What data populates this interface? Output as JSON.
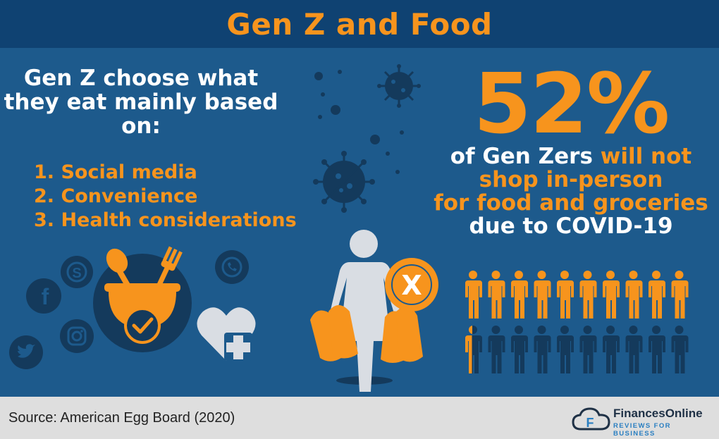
{
  "header": {
    "title": "Gen Z and Food"
  },
  "intro": {
    "text": "Gen Z choose what they eat mainly based on:"
  },
  "reasons": [
    "1. Social media",
    "2. Convenience",
    "3. Health considerations"
  ],
  "stat": {
    "value": "52%",
    "line1_white": "of Gen Zers ",
    "line1_orange": "will not",
    "line2": "shop in-person",
    "line3": "for food and groceries",
    "line4": "due to COVID-19",
    "x_mark": "X"
  },
  "people_chart": {
    "total": 20,
    "highlighted_fraction": 0.52
  },
  "social_icons": [
    "skype-icon",
    "facebook-icon",
    "instagram-icon",
    "twitter-icon",
    "whatsapp-icon"
  ],
  "colors": {
    "orange": "#f7941d",
    "navy": "#0f4272",
    "blue": "#1d5a8c",
    "dark_figure": "#143a5c",
    "white": "#ffffff"
  },
  "footer": {
    "source": "Source: American Egg Board (2020)",
    "brand_name": "FinancesOnline",
    "brand_tagline": "REVIEWS FOR BUSINESS"
  }
}
